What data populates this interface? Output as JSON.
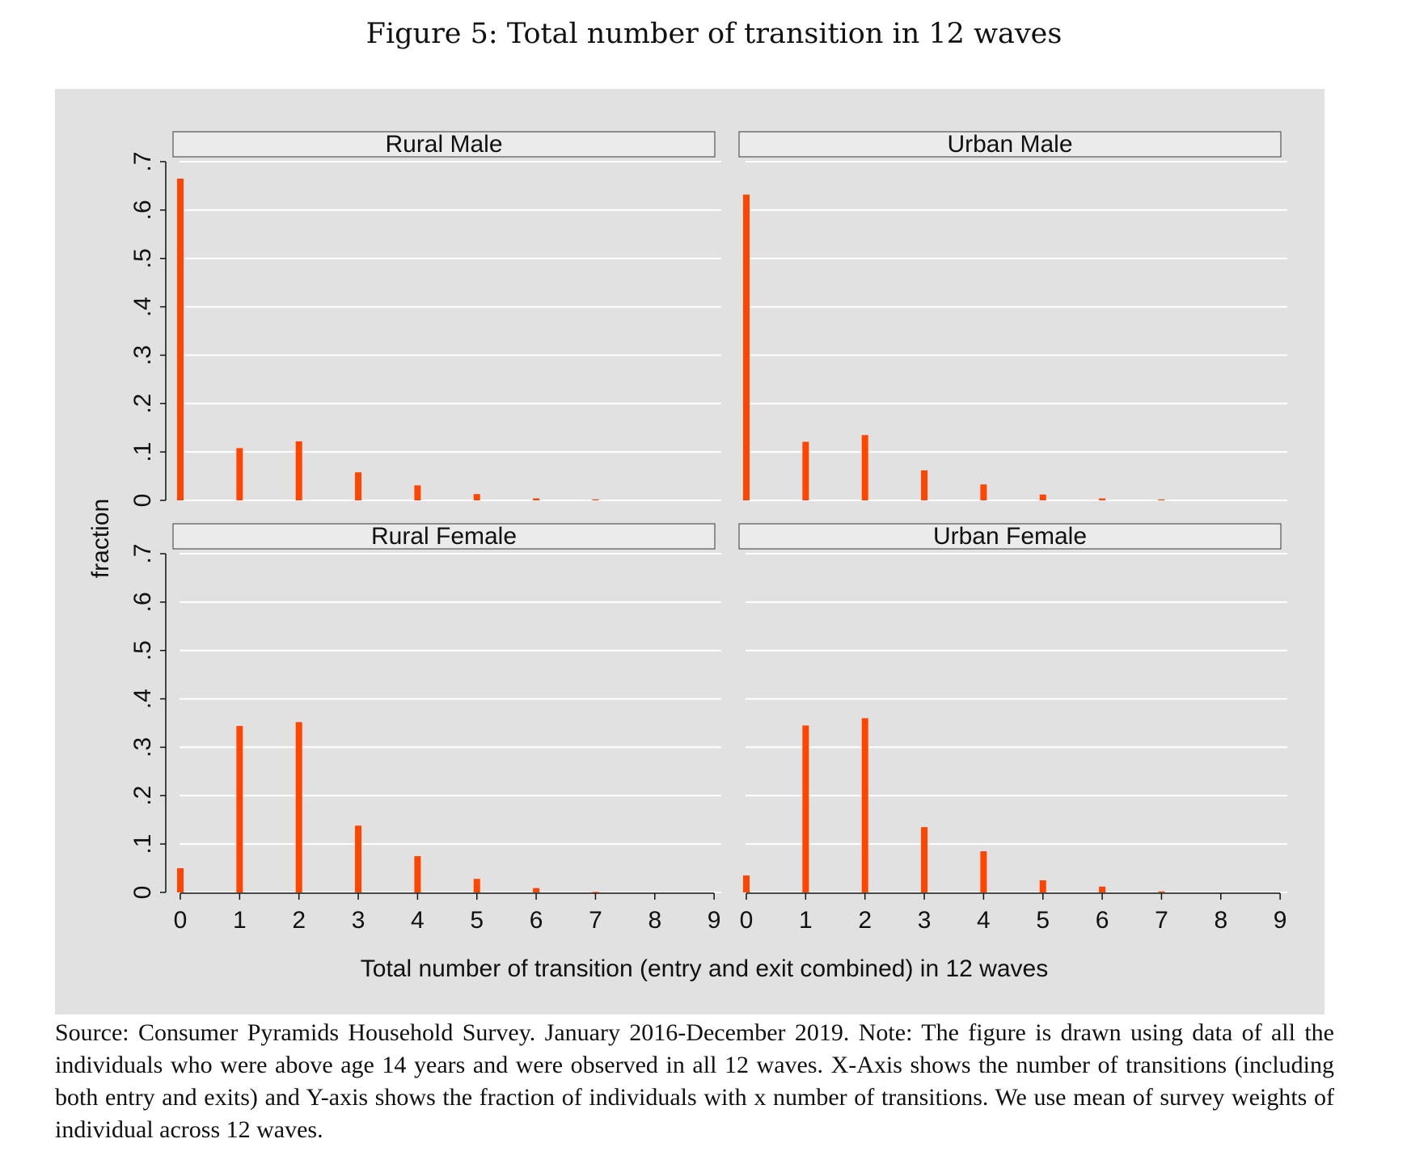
{
  "figure_title": "Figure 5: Total number of transition in 12 waves",
  "caption": "Source: Consumer Pyramids Household Survey. January 2016-December 2019. Note: The figure is drawn using data of all the individuals who were above age 14 years and were observed in all 12 waves. X-Axis shows the number of transitions (including both entry and exits) and Y-axis shows the fraction of individuals with x number of transitions. We use mean of survey weights of individual across 12 waves.",
  "colors": {
    "bar": "#ff4500",
    "plot_bg": "#e1e1e1",
    "panel_header_bg": "#ebebeb",
    "grid": "#ffffff"
  },
  "chart_data": {
    "type": "bar",
    "xlabel": "Total number of transition (entry and exit combined) in 12 waves",
    "ylabel": "fraction",
    "ylim": [
      0,
      0.7
    ],
    "yticks": [
      "0",
      ".1",
      ".2",
      ".3",
      ".4",
      ".5",
      ".6",
      ".7"
    ],
    "xlim": [
      0,
      9
    ],
    "xticks": [
      "0",
      "1",
      "2",
      "3",
      "4",
      "5",
      "6",
      "7",
      "8",
      "9"
    ],
    "grid": true,
    "panels": [
      {
        "name": "Rural Male",
        "x": [
          0,
          1,
          2,
          3,
          4,
          5,
          6,
          7,
          8
        ],
        "values": [
          0.665,
          0.108,
          0.122,
          0.058,
          0.031,
          0.013,
          0.004,
          0.002,
          0.0
        ]
      },
      {
        "name": "Urban Male",
        "x": [
          0,
          1,
          2,
          3,
          4,
          5,
          6,
          7,
          8
        ],
        "values": [
          0.632,
          0.121,
          0.135,
          0.062,
          0.033,
          0.012,
          0.004,
          0.002,
          0.0
        ]
      },
      {
        "name": "Rural Female",
        "x": [
          0,
          1,
          2,
          3,
          4,
          5,
          6,
          7,
          8
        ],
        "values": [
          0.05,
          0.344,
          0.352,
          0.138,
          0.075,
          0.028,
          0.009,
          0.001,
          0.0
        ]
      },
      {
        "name": "Urban Female",
        "x": [
          0,
          1,
          2,
          3,
          4,
          5,
          6,
          7,
          8
        ],
        "values": [
          0.035,
          0.345,
          0.36,
          0.135,
          0.085,
          0.025,
          0.012,
          0.002,
          0.0
        ]
      }
    ]
  }
}
